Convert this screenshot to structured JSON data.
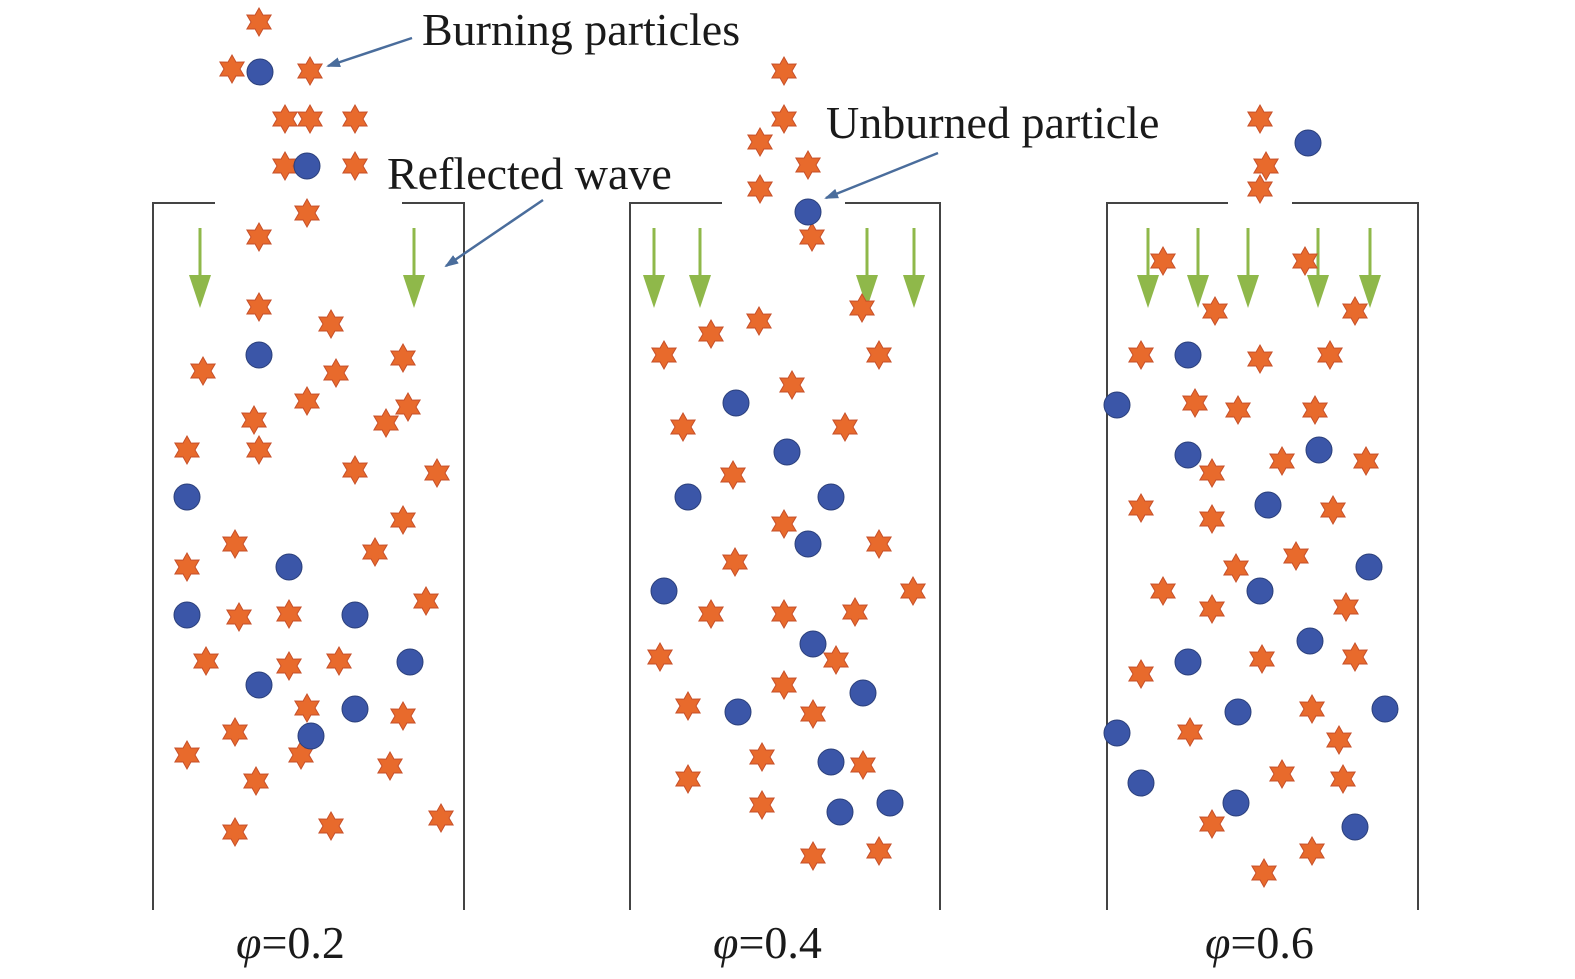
{
  "labels": {
    "burning": "Burning particles",
    "reflected": "Reflected wave",
    "unburned": "Unburned particle"
  },
  "panels": [
    {
      "phi": "0.2",
      "caption_symbol": "φ",
      "caption_value": "=0.2"
    },
    {
      "phi": "0.4",
      "caption_symbol": "φ",
      "caption_value": "=0.4"
    },
    {
      "phi": "0.6",
      "caption_symbol": "φ",
      "caption_value": "=0.6"
    }
  ],
  "colors": {
    "burning_fill": "#e86a2c",
    "burning_edge": "#c7502a",
    "unburned_fill": "#3b56a8",
    "unburned_edge": "#2b3f7a",
    "arrow": "#8fb84a",
    "tube": "#444444",
    "leader": "#4a6d9c"
  },
  "legend_items": [
    {
      "name": "burning-particle",
      "shape": "six-point-star"
    },
    {
      "name": "unburned-particle",
      "shape": "circle"
    },
    {
      "name": "reflected-wave",
      "shape": "down-arrow"
    }
  ]
}
